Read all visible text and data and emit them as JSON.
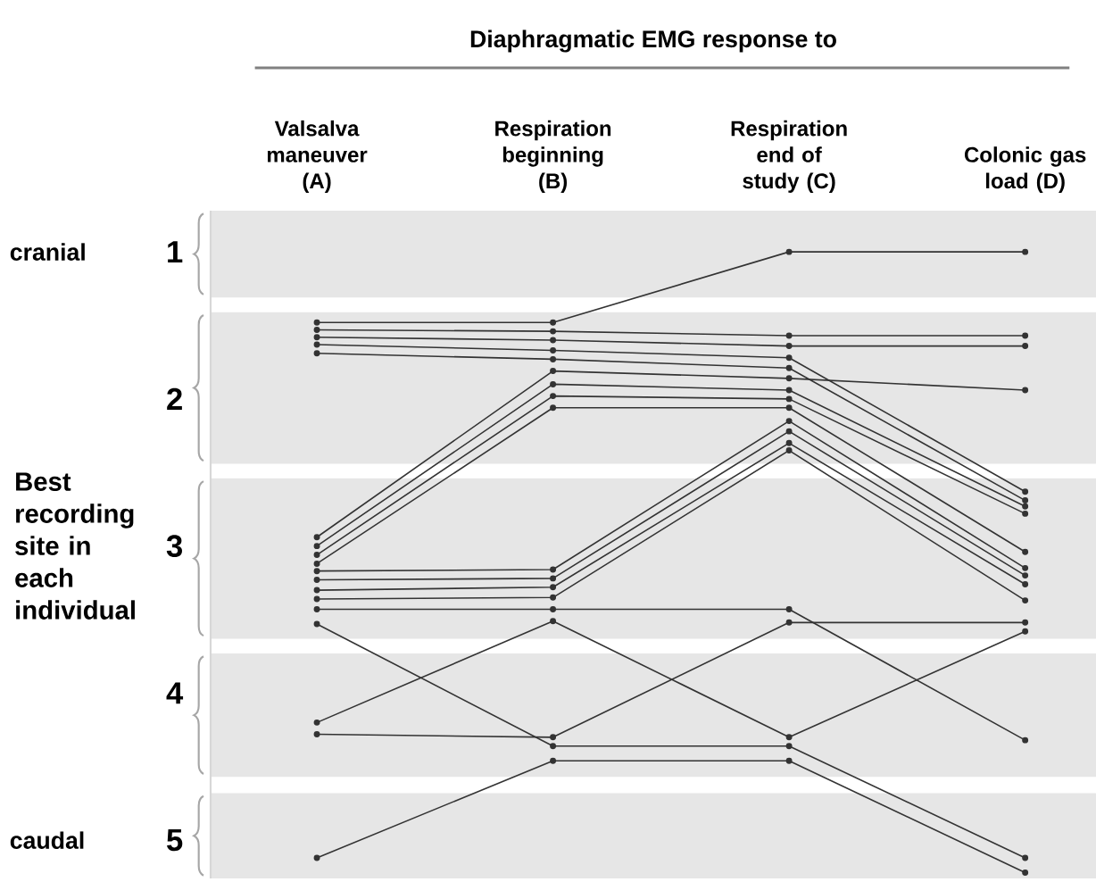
{
  "chart_data": {
    "type": "line",
    "title": "Diaphragmatic EMG response to",
    "ylabel": "Best recording site in each individual",
    "categories": [
      "Valsalva maneuver (A)",
      "Respiration beginning (B)",
      "Respiration end of study (C)",
      "Colonic gas load (D)"
    ],
    "ylim": [
      5.26,
      0.72
    ],
    "yticks": [
      1,
      2,
      3,
      4,
      5
    ],
    "annotations": [
      "cranial",
      "caudal"
    ],
    "bands": [
      {
        "axis": "y",
        "from": 0.72,
        "to": 1.31,
        "color": "#e6e6e6"
      },
      {
        "axis": "y",
        "from": 1.41,
        "to": 2.44,
        "color": "#e6e6e6"
      },
      {
        "axis": "y",
        "from": 2.54,
        "to": 3.63,
        "color": "#e6e6e6"
      },
      {
        "axis": "y",
        "from": 3.73,
        "to": 4.57,
        "color": "#e6e6e6"
      },
      {
        "axis": "y",
        "from": 4.68,
        "to": 5.26,
        "color": "#e6e6e6"
      }
    ],
    "marker": "circle",
    "line_style": "solid",
    "grid": false,
    "series": [
      {
        "color": "#333333",
        "values": [
          1.48,
          1.48,
          1.0,
          1.0
        ]
      },
      {
        "color": "#333333",
        "values": [
          1.53,
          1.54,
          1.57,
          1.57
        ]
      },
      {
        "color": "#333333",
        "values": [
          1.58,
          1.6,
          1.64,
          1.64
        ]
      },
      {
        "color": "#333333",
        "values": [
          1.63,
          1.67,
          1.72,
          2.63
        ]
      },
      {
        "color": "#333333",
        "values": [
          1.69,
          1.73,
          1.79,
          2.69
        ]
      },
      {
        "color": "#333333",
        "values": [
          2.94,
          1.81,
          1.86,
          1.94
        ]
      },
      {
        "color": "#333333",
        "values": [
          3.0,
          1.9,
          1.94,
          2.73
        ]
      },
      {
        "color": "#333333",
        "values": [
          3.06,
          1.98,
          2.0,
          2.78
        ]
      },
      {
        "color": "#333333",
        "values": [
          3.12,
          2.06,
          2.06,
          3.04
        ]
      },
      {
        "color": "#333333",
        "values": [
          3.17,
          3.16,
          2.15,
          3.15
        ]
      },
      {
        "color": "#333333",
        "values": [
          3.23,
          3.22,
          2.22,
          3.2
        ]
      },
      {
        "color": "#333333",
        "values": [
          3.3,
          3.28,
          2.3,
          3.26
        ]
      },
      {
        "color": "#333333",
        "values": [
          3.36,
          3.35,
          2.35,
          3.37
        ]
      },
      {
        "color": "#333333",
        "values": [
          3.43,
          3.43,
          3.43,
          4.32
        ]
      },
      {
        "color": "#333333",
        "values": [
          4.2,
          3.51,
          4.3,
          3.58
        ]
      },
      {
        "color": "#333333",
        "values": [
          4.28,
          4.3,
          3.52,
          3.52
        ]
      },
      {
        "color": "#333333",
        "values": [
          3.53,
          4.36,
          4.36,
          5.12
        ]
      },
      {
        "color": "#333333",
        "values": [
          5.12,
          4.46,
          4.46,
          5.22
        ]
      }
    ]
  }
}
